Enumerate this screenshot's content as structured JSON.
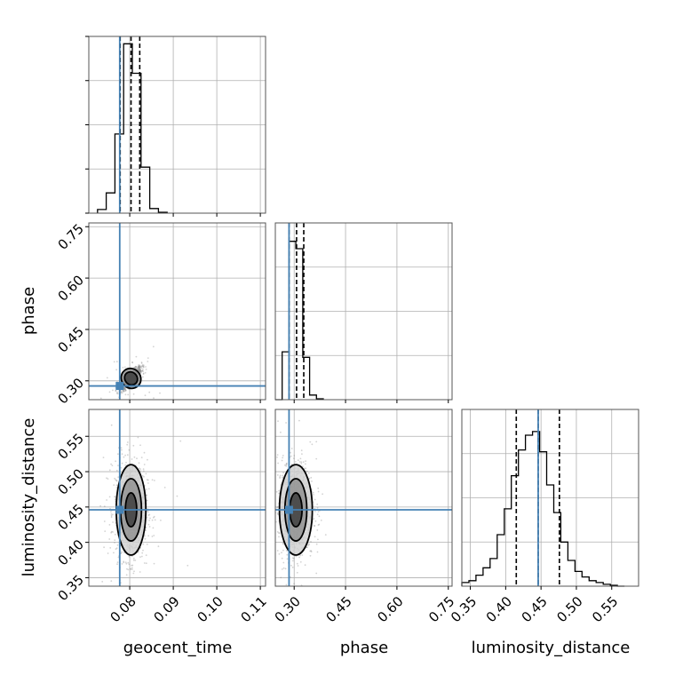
{
  "chart_data": {
    "type": "corner",
    "parameters": [
      "geocent_time",
      "phase",
      "luminosity_distance"
    ],
    "axis_labels": {
      "geocent_time": "geocent_time",
      "phase": "phase",
      "luminosity_distance": "luminosity_distance"
    },
    "ranges": {
      "geocent_time": [
        0.0706,
        0.1112
      ],
      "phase": [
        0.245,
        0.761
      ],
      "luminosity_distance": [
        0.338,
        0.588
      ]
    },
    "ticks": {
      "geocent_time": [
        "0.08",
        "0.09",
        "0.10",
        "0.11"
      ],
      "phase": [
        "0.30",
        "0.45",
        "0.60",
        "0.75"
      ],
      "luminosity_distance": [
        "0.35",
        "0.40",
        "0.45",
        "0.50",
        "0.55"
      ]
    },
    "truths": {
      "geocent_time": 0.0777,
      "phase": 0.285,
      "luminosity_distance": 0.446
    },
    "quantiles": {
      "geocent_time": [
        0.0778,
        0.0803,
        0.0823
      ],
      "phase": [
        0.285,
        0.307,
        0.328
      ],
      "luminosity_distance": [
        0.415,
        0.446,
        0.476
      ]
    },
    "histograms": {
      "geocent_time": {
        "edges": [
          0.0726,
          0.0746,
          0.0766,
          0.0786,
          0.0806,
          0.0826,
          0.0846,
          0.0866,
          0.0886
        ],
        "counts": [
          0.02,
          0.11,
          0.43,
          0.92,
          0.76,
          0.25,
          0.025,
          0.005
        ]
      },
      "phase": {
        "edges": [
          0.245,
          0.265,
          0.285,
          0.305,
          0.325,
          0.345,
          0.365,
          0.385
        ],
        "counts": [
          0.0,
          0.26,
          0.86,
          0.82,
          0.23,
          0.025,
          0.005
        ]
      },
      "luminosity_distance": {
        "edges": [
          0.338,
          0.348,
          0.358,
          0.368,
          0.378,
          0.388,
          0.398,
          0.408,
          0.418,
          0.428,
          0.438,
          0.448,
          0.458,
          0.468,
          0.478,
          0.488,
          0.498,
          0.508,
          0.518,
          0.528,
          0.538,
          0.548,
          0.558,
          0.568
        ],
        "counts": [
          0.02,
          0.03,
          0.06,
          0.1,
          0.15,
          0.28,
          0.42,
          0.6,
          0.74,
          0.82,
          0.84,
          0.73,
          0.55,
          0.4,
          0.24,
          0.14,
          0.08,
          0.05,
          0.03,
          0.02,
          0.01,
          0.005,
          0.0
        ]
      }
    },
    "samples_2d": {
      "phase_vs_geocent_time": {
        "center": [
          0.0803,
          0.307
        ],
        "contours": [
          {
            "sx": 0.0022,
            "sy": 0.03,
            "rho": 0.8
          },
          {
            "sx": 0.0014,
            "sy": 0.02,
            "rho": 0.8
          }
        ]
      },
      "luminosity_distance_vs_geocent_time": {
        "center": [
          0.0803,
          0.446
        ],
        "contours": [
          {
            "sx": 0.0034,
            "sy": 0.064,
            "rho": 0.0
          },
          {
            "sx": 0.0024,
            "sy": 0.044,
            "rho": 0.0
          },
          {
            "sx": 0.0013,
            "sy": 0.024,
            "rho": 0.0
          }
        ]
      },
      "luminosity_distance_vs_phase": {
        "center": [
          0.305,
          0.446
        ],
        "contours": [
          {
            "sx": 0.048,
            "sy": 0.064,
            "rho": 0.0
          },
          {
            "sx": 0.032,
            "sy": 0.044,
            "rho": 0.0
          },
          {
            "sx": 0.018,
            "sy": 0.024,
            "rho": 0.0
          }
        ]
      }
    },
    "colors": {
      "truth": "#4682b4",
      "histogram": "#000000",
      "grid": "#b0b0b0",
      "scatter": "#808080"
    },
    "grid": true
  }
}
